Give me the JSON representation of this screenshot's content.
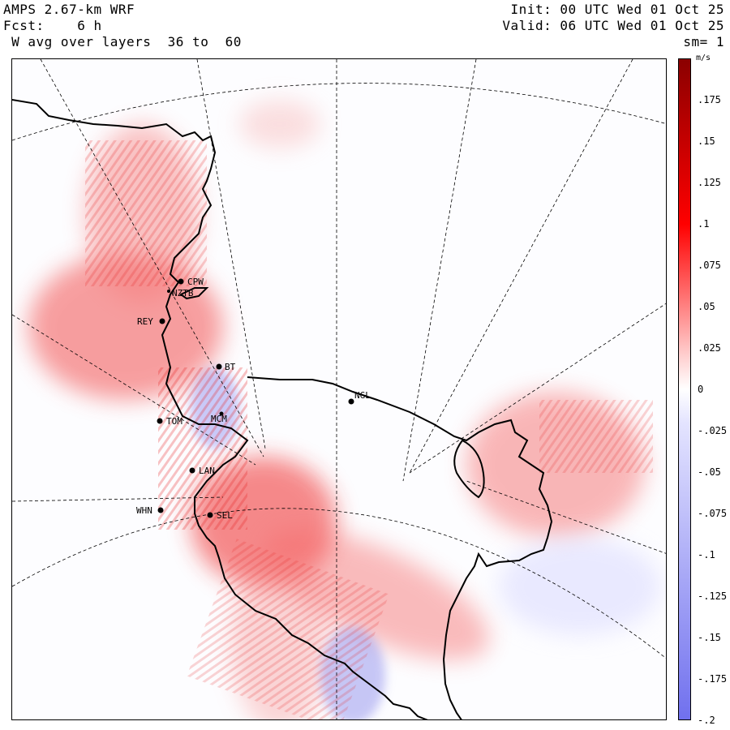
{
  "header": {
    "model": "AMPS 2.67-km WRF",
    "forecast": "Fcst:    6 h",
    "field": " W avg over layers  36 to  60",
    "init": "Init: 00 UTC Wed 01 Oct 25",
    "valid": "Valid: 06 UTC Wed 01 Oct 25",
    "smoothing": "sm= 1"
  },
  "colorbar": {
    "unit": "m/s",
    "ticks": [
      ".175",
      ".15",
      ".125",
      ".1",
      ".075",
      ".05",
      ".025",
      "0",
      "-.025",
      "-.05",
      "-.075",
      "-.1",
      "-.125",
      "-.15",
      "-.175",
      "-.2"
    ],
    "range": [
      -0.2,
      0.2
    ],
    "colors": {
      "pos_max": "#8b0000",
      "pos_mid": "#ff0000",
      "pos_low": "#ffd0d0",
      "zero": "#ffffff",
      "neg_low": "#e4e4ff",
      "neg_max": "#7070ee"
    }
  },
  "stations": [
    {
      "id": "CPW"
    },
    {
      "id": "NZTB"
    },
    {
      "id": "REY"
    },
    {
      "id": "BT"
    },
    {
      "id": "MCM"
    },
    {
      "id": "NGL"
    },
    {
      "id": "TOM"
    },
    {
      "id": "LAN"
    },
    {
      "id": "WHN"
    },
    {
      "id": "SEL"
    }
  ]
}
